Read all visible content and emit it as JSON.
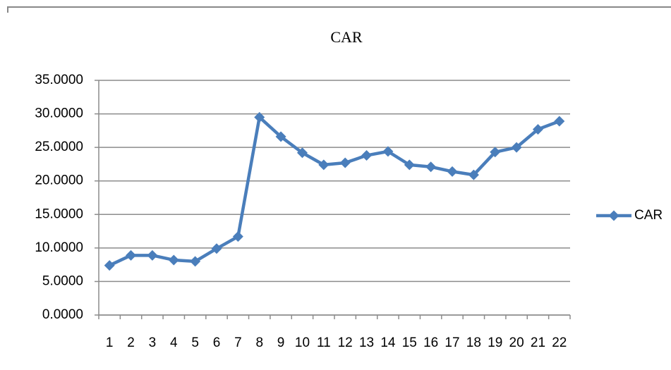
{
  "chart_data": {
    "type": "line",
    "title": "CAR",
    "categories": [
      "1",
      "2",
      "3",
      "4",
      "5",
      "6",
      "7",
      "8",
      "9",
      "10",
      "11",
      "12",
      "13",
      "14",
      "15",
      "16",
      "17",
      "18",
      "19",
      "20",
      "21",
      "22"
    ],
    "series": [
      {
        "name": "CAR",
        "color": "#4a7ebb",
        "values": [
          7.4,
          8.9,
          8.9,
          8.2,
          8.0,
          9.9,
          11.7,
          29.5,
          26.6,
          24.2,
          22.4,
          22.7,
          23.8,
          24.4,
          22.4,
          22.1,
          21.4,
          20.9,
          24.3,
          25.0,
          27.7,
          28.9
        ]
      }
    ],
    "ylim": [
      0,
      35
    ],
    "yticks": [
      {
        "value": 0,
        "label": "0.0000"
      },
      {
        "value": 5,
        "label": "5.0000"
      },
      {
        "value": 10,
        "label": "10.0000"
      },
      {
        "value": 15,
        "label": "15.0000"
      },
      {
        "value": 20,
        "label": "20.0000"
      },
      {
        "value": 25,
        "label": "25.0000"
      },
      {
        "value": 30,
        "label": "30.0000"
      },
      {
        "value": 35,
        "label": "35.0000"
      }
    ],
    "grid": true,
    "legend": "right"
  }
}
